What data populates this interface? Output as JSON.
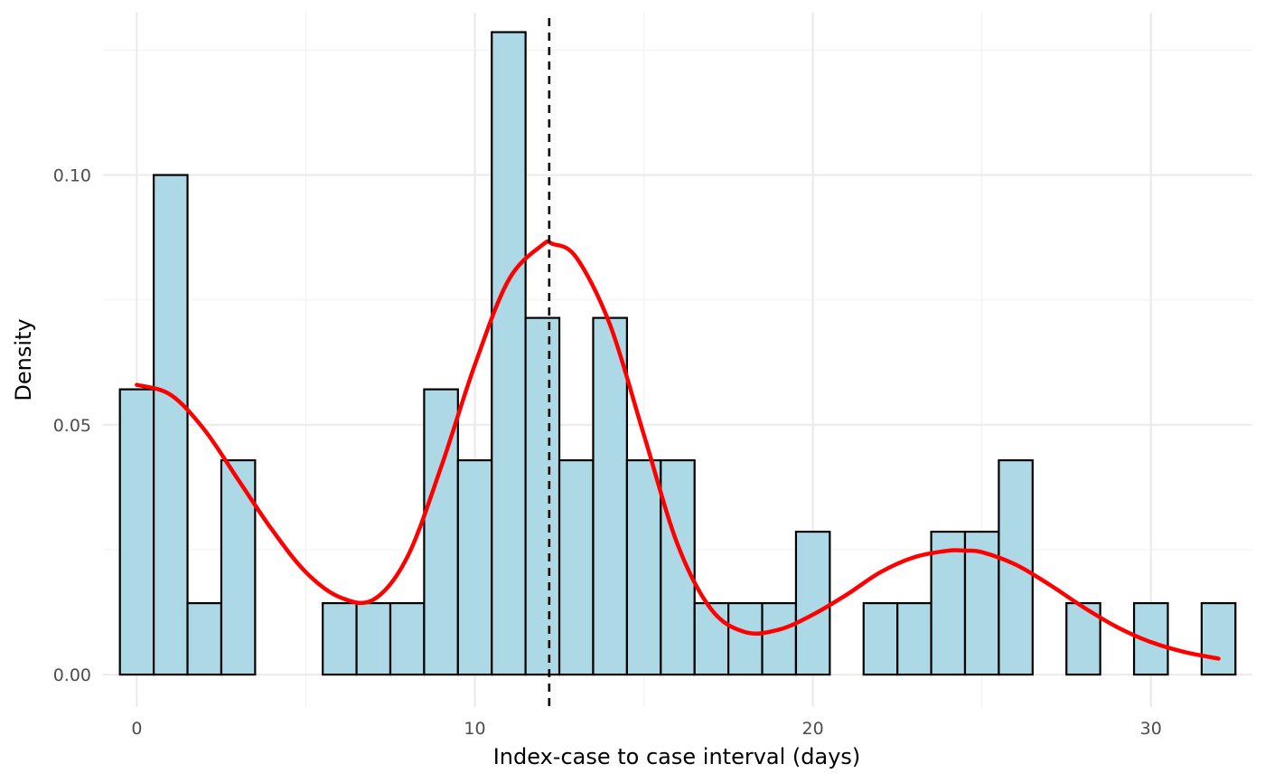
{
  "chart_data": {
    "type": "bar",
    "title": "",
    "xlabel": "Index-case to case interval (days)",
    "ylabel": "Density",
    "xlim": [
      -1,
      33
    ],
    "ylim": [
      -0.0065,
      0.1325
    ],
    "x_ticks": [
      {
        "value": 0,
        "label": "0"
      },
      {
        "value": 10,
        "label": "10"
      },
      {
        "value": 20,
        "label": "20"
      },
      {
        "value": 30,
        "label": "30"
      }
    ],
    "y_ticks": [
      {
        "value": 0.0,
        "label": "0.00"
      },
      {
        "value": 0.05,
        "label": "0.05"
      },
      {
        "value": 0.1,
        "label": "0.10"
      }
    ],
    "grid": true,
    "histogram": {
      "bin_width": 1,
      "bin_centers": [
        0,
        1,
        2,
        3,
        4,
        5,
        6,
        7,
        8,
        9,
        10,
        11,
        12,
        13,
        14,
        15,
        16,
        17,
        18,
        19,
        20,
        21,
        22,
        23,
        24,
        25,
        26,
        27,
        28,
        29,
        30,
        31,
        32
      ],
      "density": [
        0.0571,
        0.1,
        0.0143,
        0.0429,
        0,
        0,
        0.0143,
        0.0143,
        0.0143,
        0.0571,
        0.0429,
        0.1286,
        0.0714,
        0.0429,
        0.0714,
        0.0429,
        0.0429,
        0.0143,
        0.0143,
        0.0143,
        0.0286,
        0,
        0.0143,
        0.0143,
        0.0286,
        0.0286,
        0.0429,
        0,
        0.0143,
        0,
        0.0143,
        0,
        0.0143
      ],
      "fill": "#add8e6",
      "stroke": "#000000"
    },
    "density_curve": {
      "color": "#ff0000",
      "x": [
        0,
        1,
        2,
        3,
        4,
        5,
        6,
        7,
        8,
        9,
        10,
        11,
        12,
        12.3,
        13,
        14,
        15,
        16,
        17,
        18,
        19,
        20,
        21,
        22,
        23,
        24,
        24.5,
        25,
        26,
        27,
        28,
        29,
        30,
        31,
        32
      ],
      "y": [
        0.058,
        0.056,
        0.049,
        0.039,
        0.029,
        0.0205,
        0.0155,
        0.015,
        0.0235,
        0.0415,
        0.062,
        0.079,
        0.086,
        0.0862,
        0.0835,
        0.07,
        0.048,
        0.026,
        0.013,
        0.0085,
        0.009,
        0.012,
        0.016,
        0.0205,
        0.0235,
        0.0248,
        0.0248,
        0.0245,
        0.022,
        0.018,
        0.0135,
        0.0095,
        0.0065,
        0.0045,
        0.0032
      ]
    },
    "reference_line": {
      "x": 12.2,
      "style": "dashed",
      "color": "#000000"
    }
  }
}
